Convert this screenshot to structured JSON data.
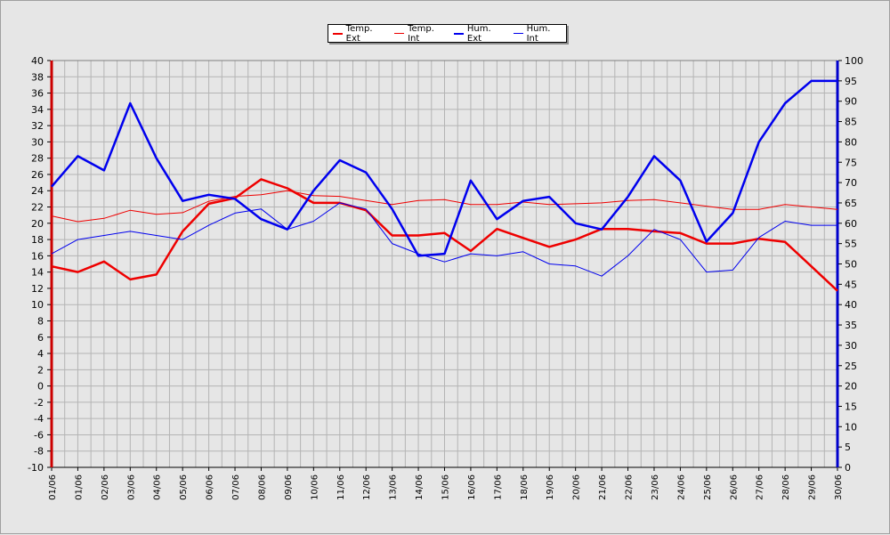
{
  "chart_data": {
    "type": "line",
    "categories": [
      "01/06",
      "01/06",
      "02/06",
      "03/06",
      "04/06",
      "05/06",
      "06/06",
      "07/06",
      "08/06",
      "09/06",
      "10/06",
      "11/06",
      "12/06",
      "13/06",
      "14/06",
      "15/06",
      "16/06",
      "17/06",
      "18/06",
      "19/06",
      "20/06",
      "21/06",
      "22/06",
      "23/06",
      "24/06",
      "25/06",
      "26/06",
      "27/06",
      "28/06",
      "29/06",
      "30/06"
    ],
    "legend_placement": "top-center",
    "grid": true,
    "y_left": {
      "min": -10,
      "max": 40,
      "step": 2,
      "color": "#cc0000"
    },
    "y_right": {
      "min": 0,
      "max": 100,
      "step": 5,
      "color": "#0000cc"
    },
    "series": [
      {
        "name": "Temp. Ext",
        "axis": "left",
        "color": "#ee0000",
        "width": 2.5,
        "values": [
          14.7,
          14.0,
          15.3,
          13.1,
          13.7,
          19.0,
          22.4,
          23.1,
          25.4,
          24.3,
          22.5,
          22.5,
          21.6,
          18.5,
          18.5,
          18.8,
          16.6,
          19.3,
          18.2,
          17.1,
          18.0,
          19.3,
          19.3,
          19.0,
          18.8,
          17.5,
          17.5,
          18.1,
          17.7,
          14.7,
          11.7
        ]
      },
      {
        "name": "Temp. Int",
        "axis": "left",
        "color": "#ee0000",
        "width": 1,
        "values": [
          20.9,
          20.2,
          20.6,
          21.6,
          21.1,
          21.3,
          22.7,
          23.3,
          23.5,
          24.0,
          23.4,
          23.3,
          22.8,
          22.3,
          22.8,
          22.9,
          22.3,
          22.3,
          22.6,
          22.3,
          22.4,
          22.5,
          22.8,
          22.9,
          22.5,
          22.1,
          21.7,
          21.7,
          22.3,
          22.0,
          21.7
        ]
      },
      {
        "name": "Hum. Ext",
        "axis": "right",
        "color": "#0000ee",
        "width": 2.5,
        "values": [
          69.0,
          76.5,
          73.0,
          89.5,
          76.0,
          65.5,
          67.0,
          66.0,
          61.0,
          58.5,
          68.0,
          75.5,
          72.5,
          63.5,
          52.0,
          52.5,
          70.5,
          61.0,
          65.5,
          66.5,
          60.0,
          58.5,
          66.5,
          76.5,
          70.5,
          55.5,
          62.5,
          80.0,
          89.5,
          95.0,
          95.0
        ]
      },
      {
        "name": "Hum. Int",
        "axis": "right",
        "color": "#0000ee",
        "width": 1,
        "values": [
          52.5,
          56.0,
          57.0,
          58.0,
          57.0,
          56.0,
          59.5,
          62.5,
          63.5,
          58.5,
          60.5,
          65.0,
          63.5,
          55.0,
          52.5,
          50.5,
          52.5,
          52.0,
          53.0,
          50.0,
          49.5,
          47.0,
          52.0,
          58.5,
          56.0,
          48.0,
          48.5,
          56.5,
          60.5,
          59.5,
          59.5
        ]
      }
    ]
  }
}
